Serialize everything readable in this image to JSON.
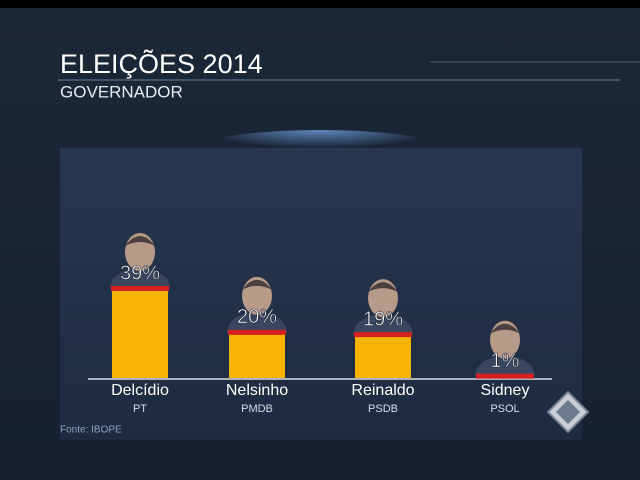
{
  "chart_data": {
    "type": "bar",
    "title": "ELEIÇÕES 2014",
    "subtitle": "GOVERNADOR",
    "categories": [
      "Delcídio",
      "Nelsinho",
      "Reinaldo",
      "Sidney"
    ],
    "parties": [
      "PT",
      "PMDB",
      "PSDB",
      "PSOL"
    ],
    "values": [
      39,
      20,
      19,
      1
    ],
    "value_labels": [
      "39%",
      "20%",
      "19%",
      "1%"
    ],
    "color": "#f5b400",
    "source": "Fonte: IBOPE"
  }
}
